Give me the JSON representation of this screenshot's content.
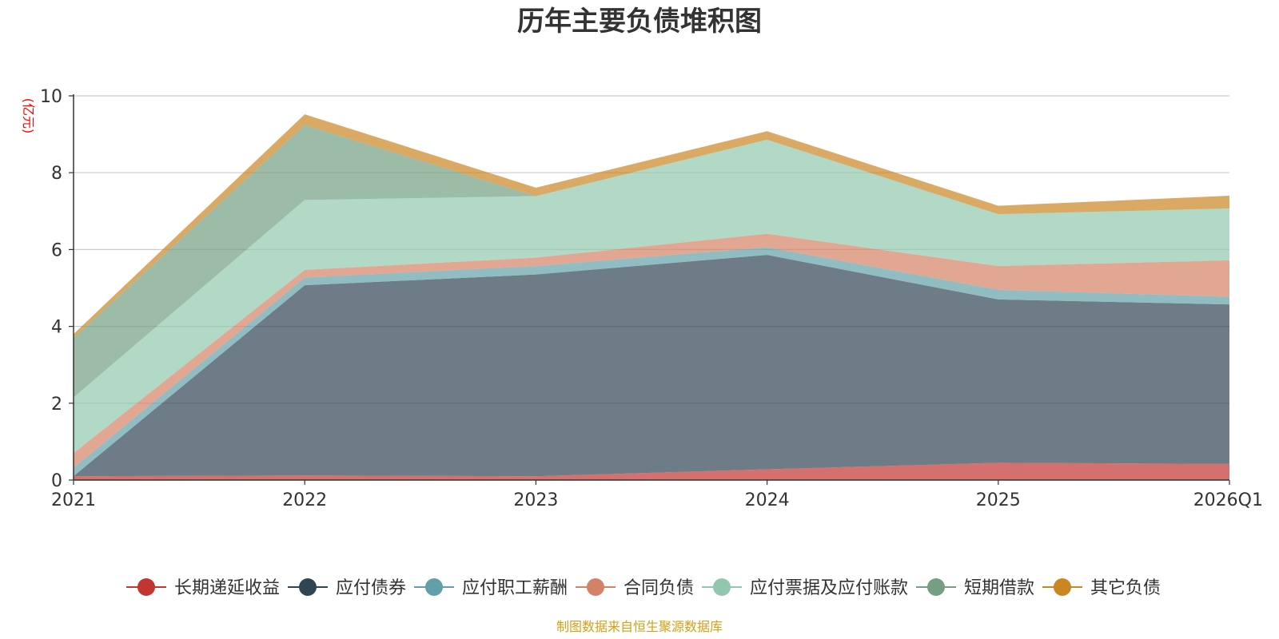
{
  "chart_data": {
    "type": "area",
    "stacked": true,
    "title": "历年主要负债堆积图",
    "unit_label": "(亿元)",
    "source_note": "制图数据来自恒生聚源数据库",
    "categories": [
      "2021",
      "2022",
      "2023",
      "2024",
      "2025",
      "2026Q1"
    ],
    "ylim": [
      0,
      10
    ],
    "yticks": [
      0,
      2,
      4,
      6,
      8,
      10
    ],
    "grid": true,
    "legend_position": "bottom",
    "series": [
      {
        "name": "长期递延收益",
        "color": "#c23531",
        "values": [
          0.1,
          0.12,
          0.1,
          0.28,
          0.45,
          0.42
        ]
      },
      {
        "name": "应付债券",
        "color": "#2f4554",
        "values": [
          0.0,
          4.95,
          5.25,
          5.58,
          4.25,
          4.15
        ]
      },
      {
        "name": "应付职工薪酬",
        "color": "#61a0a8",
        "values": [
          0.22,
          0.2,
          0.22,
          0.2,
          0.25,
          0.2
        ]
      },
      {
        "name": "合同负债",
        "color": "#d48265",
        "values": [
          0.38,
          0.2,
          0.22,
          0.35,
          0.62,
          0.95
        ]
      },
      {
        "name": "应付票据及应付账款",
        "color": "#91c7ae",
        "values": [
          1.45,
          1.82,
          1.6,
          2.45,
          1.35,
          1.35
        ]
      },
      {
        "name": "短期借款",
        "color": "#749f83",
        "values": [
          1.55,
          1.95,
          0.0,
          0.0,
          0.0,
          0.0
        ]
      },
      {
        "name": "其它负债",
        "color": "#ca8622",
        "values": [
          0.1,
          0.28,
          0.22,
          0.22,
          0.22,
          0.33
        ]
      }
    ]
  }
}
